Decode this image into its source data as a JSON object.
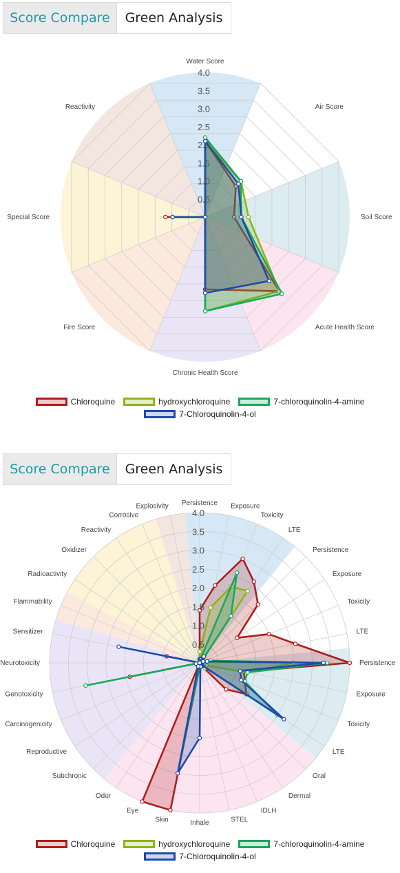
{
  "tabs": {
    "score_compare": "Score Compare",
    "green_analysis": "Green Analysis"
  },
  "legend": [
    {
      "name": "Chloroquine",
      "color": "#b01c1c",
      "fill": "rgba(176,28,28,0.22)"
    },
    {
      "name": "hydroxychloroquine",
      "color": "#8db41a",
      "fill": "rgba(141,180,26,0.22)"
    },
    {
      "name": "7-chloroquinolin-4-amine",
      "color": "#19a85a",
      "fill": "rgba(25,168,90,0.22)"
    },
    {
      "name": "7-Chloroquinolin-4-ol",
      "color": "#1c4bab",
      "fill": "rgba(28,75,171,0.22)"
    }
  ],
  "chart_data": [
    {
      "type": "radar",
      "r_ticks": [
        "0.5",
        "1.0",
        "1.5",
        "2.0",
        "2.5",
        "3.0",
        "3.5",
        "4.0"
      ],
      "r_range": [
        0,
        4
      ],
      "axes": [
        "Water Score",
        "Air Score",
        "Soil Score",
        "Acute Health Score",
        "Chronic Health Score",
        "Fire Score",
        "Special Score",
        "Reactivity"
      ],
      "sector_colors": [
        "#cfe4f3",
        "#ffffff",
        "#d6e9ee",
        "#fbe1ee",
        "#e6e1f4",
        "#fbe5d8",
        "#fdf1cf",
        "#f1e1da"
      ],
      "series": [
        {
          "name": "Chloroquine",
          "values": [
            2.1,
            1.2,
            0.8,
            2.9,
            2.0,
            0.0,
            1.1,
            0.0
          ]
        },
        {
          "name": "hydroxychloroquine",
          "values": [
            2.1,
            1.4,
            1.2,
            2.9,
            2.6,
            0.0,
            0.9,
            0.0
          ]
        },
        {
          "name": "7-chloroquinolin-4-amine",
          "values": [
            2.2,
            1.4,
            1.0,
            3.0,
            2.6,
            0.0,
            0.9,
            0.0
          ]
        },
        {
          "name": "7-Chloroquinolin-4-ol",
          "values": [
            2.1,
            1.3,
            1.0,
            2.5,
            2.1,
            0.0,
            0.9,
            0.0
          ]
        }
      ]
    },
    {
      "type": "radar",
      "r_ticks": [
        "0.5",
        "1.0",
        "1.5",
        "2.0",
        "2.5",
        "3.0",
        "3.5",
        "4.0"
      ],
      "r_range": [
        0,
        4
      ],
      "axes": [
        "Persistence",
        "Exposure",
        "Toxicity",
        "LTE",
        "Persistence",
        "Exposure",
        "Toxicity",
        "LTE",
        "Persistence",
        "Exposure",
        "Toxicity",
        "LTE",
        "Oral",
        "Dermal",
        "IDLH",
        "STEL",
        "Inhale",
        "Skin",
        "Eye",
        "Odor",
        "Subchronic",
        "Reproductive",
        "Carcinogenicity",
        "Genotoxicity",
        "Neurotoxicity",
        "Sensitizer",
        "Flammability",
        "Radioactivity",
        "Oxidizer",
        "Reactivity",
        "Corrosive",
        "Explosivity"
      ],
      "sector_colors": [
        "#cfe4f3",
        "#cfe4f3",
        "#cfe4f3",
        "#cfe4f3",
        "#ffffff",
        "#ffffff",
        "#ffffff",
        "#ffffff",
        "#d6e9ee",
        "#d6e9ee",
        "#d6e9ee",
        "#d6e9ee",
        "#fbe1ee",
        "#fbe1ee",
        "#fbe1ee",
        "#fbe1ee",
        "#fbe1ee",
        "#fbe1ee",
        "#fbe1ee",
        "#fbe1ee",
        "#e6e1f4",
        "#e6e1f4",
        "#e6e1f4",
        "#e6e1f4",
        "#e6e1f4",
        "#e6e1f4",
        "#fbe5d8",
        "#fdf1cf",
        "#fdf1cf",
        "#fdf1cf",
        "#fdf1cf",
        "#f1e1da"
      ],
      "series": [
        {
          "name": "Chloroquine",
          "values": [
            1.4,
            2.1,
            3.0,
            2.6,
            2.2,
            1.2,
            2.0,
            2.6,
            4.0,
            1.2,
            1.3,
            1.5,
            1.0,
            0.1,
            0.1,
            0.1,
            0.1,
            4.0,
            4.0,
            0.0,
            0.0,
            0.0,
            0.0,
            1.9,
            0.0,
            0.9,
            0.0,
            0.0,
            0.0,
            0.0,
            0.0,
            0.0
          ]
        },
        {
          "name": "hydroxychloroquine",
          "values": [
            0.3,
            1.5,
            2.2,
            2.3,
            0.1,
            0.1,
            0.1,
            0.1,
            2.5,
            1.3,
            0.2,
            0.2,
            0.2,
            0.1,
            0.1,
            0.1,
            0.1,
            0.1,
            0.1,
            0.0,
            0.0,
            0.0,
            0.0,
            0.0,
            0.0,
            0.0,
            0.0,
            0.0,
            0.0,
            0.0,
            0.0,
            0.0
          ]
        },
        {
          "name": "7-chloroquinolin-4-amine",
          "values": [
            0.1,
            0.1,
            2.6,
            1.5,
            0.1,
            0.1,
            0.1,
            0.3,
            3.4,
            1.3,
            1.3,
            2.5,
            0.1,
            0.1,
            0.1,
            0.1,
            0.1,
            3.0,
            0.1,
            0.0,
            0.0,
            0.0,
            0.0,
            3.1,
            0.0,
            0.0,
            0.0,
            0.0,
            0.0,
            0.0,
            0.0,
            0.0
          ]
        },
        {
          "name": "7-Chloroquinolin-4-ol",
          "values": [
            0.1,
            0.1,
            0.1,
            0.2,
            0.1,
            0.1,
            0.1,
            0.2,
            3.3,
            1.1,
            1.2,
            2.7,
            0.1,
            0.1,
            0.1,
            0.1,
            2.0,
            3.0,
            0.1,
            0.0,
            0.0,
            0.0,
            0.0,
            0.1,
            0.0,
            2.2,
            0.0,
            0.0,
            0.0,
            0.0,
            0.0,
            0.0
          ]
        }
      ]
    }
  ]
}
